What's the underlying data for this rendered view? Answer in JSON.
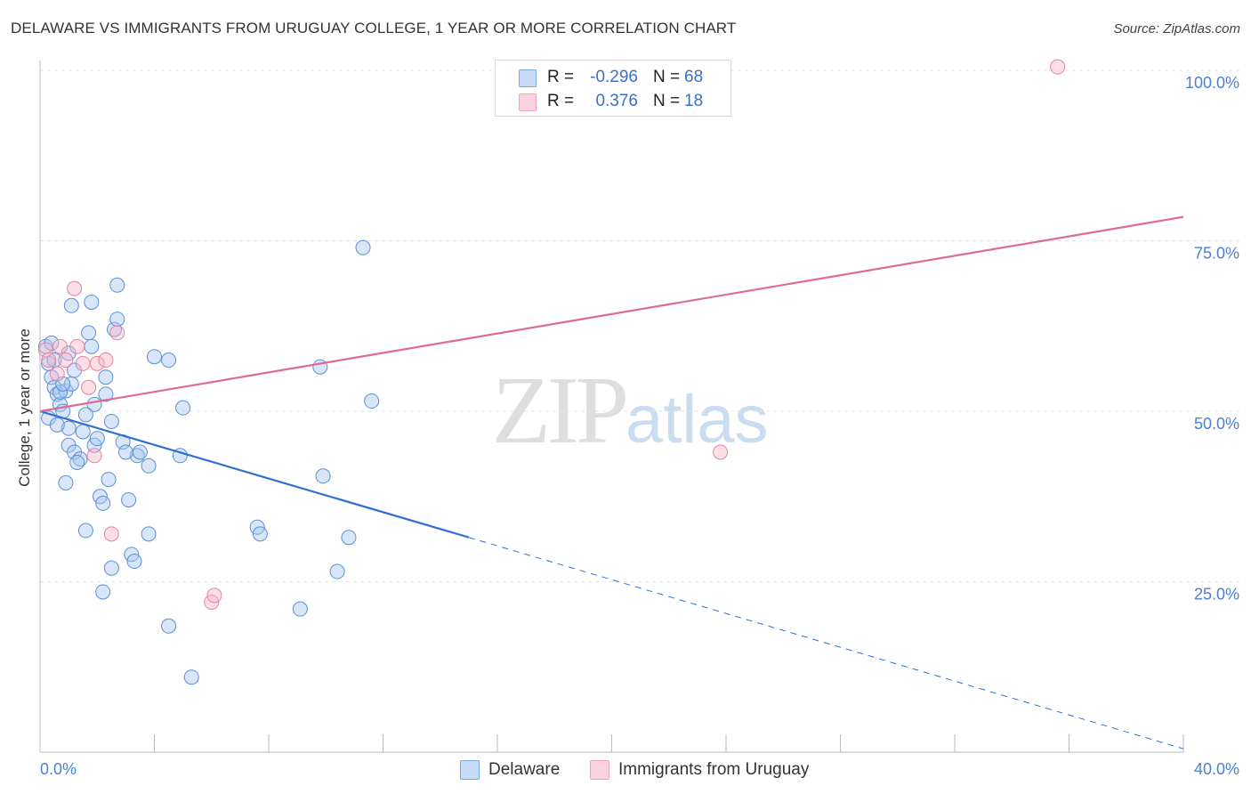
{
  "header": {
    "title": "DELAWARE VS IMMIGRANTS FROM URUGUAY COLLEGE, 1 YEAR OR MORE CORRELATION CHART",
    "source": "Source: ZipAtlas.com"
  },
  "watermark": {
    "zip": "ZIP",
    "atlas": "atlas"
  },
  "legend_top": {
    "rows": [
      {
        "r_label": "R =",
        "r_value": "-0.296",
        "n_label": "N =",
        "n_value": "68",
        "color": "#a8c8f0"
      },
      {
        "r_label": "R =",
        "r_value": "0.376",
        "n_label": "N =",
        "n_value": "18",
        "color": "#f5b8ca"
      }
    ]
  },
  "legend_bottom": {
    "items": [
      {
        "label": "Delaware",
        "color": "#a8c8f0"
      },
      {
        "label": "Immigrants from Uruguay",
        "color": "#f5b8ca"
      }
    ]
  },
  "chart_data": {
    "type": "scatter",
    "title": "DELAWARE VS IMMIGRANTS FROM URUGUAY COLLEGE, 1 YEAR OR MORE CORRELATION CHART",
    "xlabel": "",
    "ylabel": "College, 1 year or more",
    "xlim": [
      0,
      40
    ],
    "ylim": [
      0,
      100
    ],
    "x_tick_labels": [
      {
        "value": 0,
        "label": "0.0%"
      },
      {
        "value": 40,
        "label": "40.0%"
      }
    ],
    "y_tick_labels": [
      {
        "value": 25,
        "label": "25.0%"
      },
      {
        "value": 50,
        "label": "50.0%"
      },
      {
        "value": 75,
        "label": "75.0%"
      },
      {
        "value": 100,
        "label": "100.0%"
      }
    ],
    "grid": true,
    "series": [
      {
        "name": "Delaware",
        "color": "#a8c8f0",
        "stroke": "#5b8fd6",
        "points": [
          [
            0.2,
            59.5
          ],
          [
            0.3,
            57.0
          ],
          [
            0.3,
            49.0
          ],
          [
            0.4,
            55.0
          ],
          [
            0.5,
            53.5
          ],
          [
            0.6,
            52.5
          ],
          [
            0.7,
            51.0
          ],
          [
            0.8,
            50.0
          ],
          [
            0.9,
            53.0
          ],
          [
            0.9,
            39.5
          ],
          [
            1.0,
            47.5
          ],
          [
            1.0,
            45.0
          ],
          [
            1.1,
            54.0
          ],
          [
            1.1,
            65.5
          ],
          [
            1.2,
            56.0
          ],
          [
            1.2,
            44.0
          ],
          [
            1.4,
            43.0
          ],
          [
            1.5,
            47.0
          ],
          [
            1.6,
            32.5
          ],
          [
            1.7,
            61.5
          ],
          [
            1.8,
            66.0
          ],
          [
            1.8,
            59.5
          ],
          [
            1.9,
            45.0
          ],
          [
            1.9,
            51.0
          ],
          [
            2.1,
            37.5
          ],
          [
            2.2,
            36.5
          ],
          [
            2.2,
            23.5
          ],
          [
            2.3,
            52.5
          ],
          [
            2.4,
            40.0
          ],
          [
            2.5,
            27.0
          ],
          [
            2.5,
            48.5
          ],
          [
            2.6,
            62.0
          ],
          [
            2.7,
            63.5
          ],
          [
            2.7,
            68.5
          ],
          [
            2.9,
            45.5
          ],
          [
            3.1,
            37.0
          ],
          [
            3.2,
            29.0
          ],
          [
            3.3,
            28.0
          ],
          [
            3.4,
            43.5
          ],
          [
            3.5,
            44.0
          ],
          [
            3.8,
            42.0
          ],
          [
            3.8,
            32.0
          ],
          [
            4.0,
            58.0
          ],
          [
            4.5,
            57.5
          ],
          [
            4.5,
            18.5
          ],
          [
            4.9,
            43.5
          ],
          [
            5.0,
            50.5
          ],
          [
            5.3,
            11.0
          ],
          [
            7.6,
            33.0
          ],
          [
            7.7,
            32.0
          ],
          [
            9.1,
            21.0
          ],
          [
            9.8,
            56.5
          ],
          [
            9.9,
            40.5
          ],
          [
            10.4,
            26.5
          ],
          [
            10.8,
            31.5
          ],
          [
            11.3,
            74.0
          ],
          [
            11.6,
            51.5
          ],
          [
            0.5,
            57.5
          ],
          [
            0.7,
            52.8
          ],
          [
            1.3,
            42.5
          ],
          [
            0.4,
            60.0
          ],
          [
            2.0,
            46.0
          ],
          [
            3.0,
            44.0
          ],
          [
            0.8,
            54.0
          ],
          [
            1.6,
            49.5
          ],
          [
            2.3,
            55.0
          ],
          [
            0.6,
            48.0
          ],
          [
            1.0,
            58.5
          ]
        ],
        "trend": {
          "x0": 0,
          "y0": 50.0,
          "x1": 15.0,
          "y1": 31.5,
          "dash_x1": 40.0,
          "dash_y1": 0.5
        }
      },
      {
        "name": "Immigrants from Uruguay",
        "color": "#f5b8ca",
        "stroke": "#e8829f",
        "points": [
          [
            0.2,
            59.0
          ],
          [
            0.3,
            57.5
          ],
          [
            0.6,
            55.5
          ],
          [
            0.7,
            59.5
          ],
          [
            1.2,
            68.0
          ],
          [
            1.3,
            59.5
          ],
          [
            1.5,
            57.0
          ],
          [
            1.7,
            53.5
          ],
          [
            1.9,
            43.5
          ],
          [
            2.0,
            57.0
          ],
          [
            2.5,
            32.0
          ],
          [
            2.7,
            61.5
          ],
          [
            6.0,
            22.0
          ],
          [
            6.1,
            23.0
          ],
          [
            2.3,
            57.5
          ],
          [
            0.9,
            57.5
          ],
          [
            23.8,
            44.0
          ],
          [
            35.6,
            100.5
          ]
        ],
        "trend": {
          "x0": 0,
          "y0": 50.0,
          "x1": 40.0,
          "y1": 78.5
        }
      }
    ]
  }
}
